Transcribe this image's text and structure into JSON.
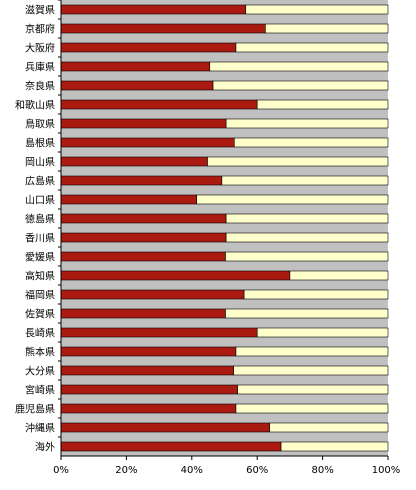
{
  "chart_data": {
    "type": "bar",
    "orientation": "horizontal",
    "stacked": true,
    "percent": true,
    "categories": [
      "滋賀県",
      "京都府",
      "大阪府",
      "兵庫県",
      "奈良県",
      "和歌山県",
      "鳥取県",
      "島根県",
      "岡山県",
      "広島県",
      "山口県",
      "徳島県",
      "香川県",
      "愛媛県",
      "高知県",
      "福岡県",
      "佐賀県",
      "長崎県",
      "熊本県",
      "大分県",
      "宮崎県",
      "鹿児島県",
      "沖縄県",
      "海外"
    ],
    "series": [
      {
        "values": [
          56.5,
          62.5,
          53.5,
          45.5,
          46.5,
          60.0,
          50.5,
          53.0,
          44.8,
          49.2,
          41.5,
          50.5,
          50.5,
          50.3,
          70.0,
          56.0,
          50.3,
          60.0,
          53.5,
          52.8,
          54.0,
          53.5,
          63.8,
          67.3
        ]
      },
      {
        "values": [
          43.5,
          37.5,
          46.5,
          54.5,
          53.5,
          40.0,
          49.5,
          47.0,
          55.2,
          50.8,
          58.5,
          49.5,
          49.5,
          49.7,
          30.0,
          44.0,
          49.7,
          40.0,
          46.5,
          47.2,
          46.0,
          46.5,
          36.2,
          32.7
        ]
      }
    ],
    "x_ticks": [
      "0%",
      "20%",
      "40%",
      "60%",
      "80%",
      "100%"
    ],
    "xlim": [
      0,
      100
    ],
    "colors": {
      "series_0": "#aa1a10",
      "series_1": "#ffffcc",
      "plot_bg": "#c0c0c0",
      "axis": "#000000"
    },
    "grid": false,
    "legend": "none"
  }
}
